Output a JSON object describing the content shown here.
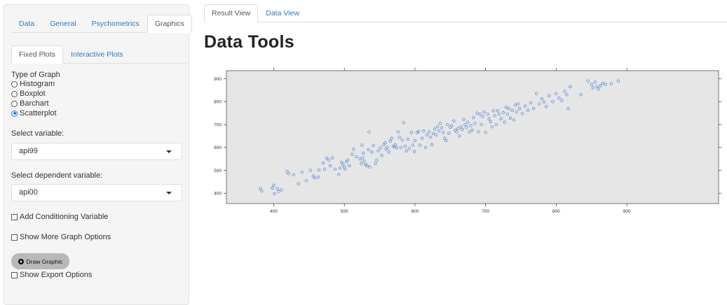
{
  "sidebar": {
    "tabs": [
      "Data",
      "General",
      "Psychometrics",
      "Graphics"
    ],
    "active_tab": "Graphics",
    "subtabs": [
      "Fixed Plots",
      "Interactive Plots"
    ],
    "active_subtab": "Fixed Plots",
    "graph_type_label": "Type of Graph",
    "graph_types": [
      {
        "label": "Histogram",
        "checked": false
      },
      {
        "label": "Boxplot",
        "checked": false
      },
      {
        "label": "Barchart",
        "checked": false
      },
      {
        "label": "Scatterplot",
        "checked": true
      }
    ],
    "select_variable_label": "Select variable:",
    "select_variable_value": "api99",
    "select_dependent_label": "Select dependent variable:",
    "select_dependent_value": "api00",
    "add_conditioning_label": "Add Conditioning Variable",
    "more_options_label": "Show More Graph Options",
    "draw_button_label": "Draw Graphic",
    "export_options_label": "Show Export Options"
  },
  "main": {
    "tabs": [
      "Result View",
      "Data View"
    ],
    "active_tab": "Result View",
    "title": "Data Tools"
  },
  "colors": {
    "accent_link": "#337ab7",
    "point_color": "#4f7fd6",
    "plot_background": "#e6e6e6"
  },
  "chart_data": {
    "type": "scatter",
    "title": "",
    "xlabel": "",
    "ylabel": "",
    "xlim": [
      333,
      1030
    ],
    "ylim": [
      355,
      935
    ],
    "xticks": [
      400,
      500,
      600,
      700,
      800,
      900
    ],
    "yticks": [
      400,
      500,
      600,
      700,
      800,
      900
    ],
    "grid": false,
    "points": [
      [
        381,
        420
      ],
      [
        383,
        410
      ],
      [
        398,
        422
      ],
      [
        400,
        435
      ],
      [
        401,
        398
      ],
      [
        405,
        420
      ],
      [
        407,
        408
      ],
      [
        411,
        415
      ],
      [
        419,
        495
      ],
      [
        421,
        486
      ],
      [
        428,
        481
      ],
      [
        435,
        442
      ],
      [
        440,
        492
      ],
      [
        446,
        455
      ],
      [
        452,
        500
      ],
      [
        456,
        475
      ],
      [
        458,
        468
      ],
      [
        463,
        470
      ],
      [
        464,
        502
      ],
      [
        470,
        532
      ],
      [
        472,
        505
      ],
      [
        475,
        553
      ],
      [
        478,
        545
      ],
      [
        480,
        520
      ],
      [
        483,
        555
      ],
      [
        487,
        505
      ],
      [
        492,
        482
      ],
      [
        494,
        510
      ],
      [
        496,
        535
      ],
      [
        498,
        525
      ],
      [
        500,
        515
      ],
      [
        501,
        505
      ],
      [
        503,
        538
      ],
      [
        505,
        545
      ],
      [
        507,
        520
      ],
      [
        511,
        570
      ],
      [
        513,
        592
      ],
      [
        517,
        560
      ],
      [
        522,
        550
      ],
      [
        524,
        530
      ],
      [
        525,
        610
      ],
      [
        526,
        555
      ],
      [
        527,
        575
      ],
      [
        528,
        540
      ],
      [
        530,
        525
      ],
      [
        532,
        520
      ],
      [
        534,
        590
      ],
      [
        535,
        668
      ],
      [
        536,
        515
      ],
      [
        539,
        580
      ],
      [
        541,
        608
      ],
      [
        544,
        530
      ],
      [
        546,
        545
      ],
      [
        548,
        585
      ],
      [
        551,
        598
      ],
      [
        553,
        565
      ],
      [
        556,
        612
      ],
      [
        558,
        620
      ],
      [
        559,
        592
      ],
      [
        561,
        600
      ],
      [
        563,
        580
      ],
      [
        565,
        628
      ],
      [
        567,
        640
      ],
      [
        569,
        605
      ],
      [
        571,
        602
      ],
      [
        572,
        612
      ],
      [
        574,
        598
      ],
      [
        576,
        668
      ],
      [
        578,
        645
      ],
      [
        580,
        600
      ],
      [
        582,
        632
      ],
      [
        584,
        708
      ],
      [
        586,
        605
      ],
      [
        588,
        585
      ],
      [
        590,
        635
      ],
      [
        592,
        595
      ],
      [
        595,
        665
      ],
      [
        597,
        610
      ],
      [
        599,
        582
      ],
      [
        600,
        630
      ],
      [
        603,
        665
      ],
      [
        605,
        670
      ],
      [
        607,
        610
      ],
      [
        610,
        640
      ],
      [
        612,
        672
      ],
      [
        615,
        600
      ],
      [
        617,
        655
      ],
      [
        620,
        668
      ],
      [
        622,
        645
      ],
      [
        624,
        612
      ],
      [
        626,
        660
      ],
      [
        628,
        680
      ],
      [
        630,
        655
      ],
      [
        632,
        690
      ],
      [
        634,
        672
      ],
      [
        636,
        705
      ],
      [
        638,
        685
      ],
      [
        640,
        665
      ],
      [
        642,
        640
      ],
      [
        644,
        630
      ],
      [
        646,
        700
      ],
      [
        648,
        662
      ],
      [
        650,
        688
      ],
      [
        652,
        695
      ],
      [
        655,
        715
      ],
      [
        657,
        675
      ],
      [
        659,
        668
      ],
      [
        661,
        682
      ],
      [
        663,
        650
      ],
      [
        665,
        690
      ],
      [
        667,
        678
      ],
      [
        669,
        722
      ],
      [
        671,
        700
      ],
      [
        673,
        688
      ],
      [
        675,
        710
      ],
      [
        677,
        668
      ],
      [
        679,
        695
      ],
      [
        681,
        675
      ],
      [
        683,
        730
      ],
      [
        685,
        705
      ],
      [
        688,
        750
      ],
      [
        690,
        668
      ],
      [
        692,
        745
      ],
      [
        694,
        700
      ],
      [
        696,
        735
      ],
      [
        698,
        755
      ],
      [
        700,
        665
      ],
      [
        703,
        745
      ],
      [
        705,
        725
      ],
      [
        707,
        712
      ],
      [
        709,
        690
      ],
      [
        711,
        760
      ],
      [
        713,
        738
      ],
      [
        715,
        700
      ],
      [
        717,
        760
      ],
      [
        719,
        745
      ],
      [
        722,
        725
      ],
      [
        725,
        752
      ],
      [
        727,
        710
      ],
      [
        729,
        775
      ],
      [
        731,
        745
      ],
      [
        733,
        770
      ],
      [
        735,
        728
      ],
      [
        738,
        762
      ],
      [
        740,
        720
      ],
      [
        742,
        785
      ],
      [
        744,
        755
      ],
      [
        746,
        790
      ],
      [
        748,
        770
      ],
      [
        752,
        748
      ],
      [
        756,
        780
      ],
      [
        760,
        762
      ],
      [
        764,
        795
      ],
      [
        768,
        770
      ],
      [
        772,
        835
      ],
      [
        776,
        790
      ],
      [
        780,
        812
      ],
      [
        783,
        798
      ],
      [
        786,
        778
      ],
      [
        790,
        825
      ],
      [
        795,
        800
      ],
      [
        800,
        835
      ],
      [
        804,
        815
      ],
      [
        808,
        805
      ],
      [
        812,
        845
      ],
      [
        815,
        830
      ],
      [
        817,
        770
      ],
      [
        820,
        865
      ],
      [
        835,
        830
      ],
      [
        845,
        890
      ],
      [
        850,
        875
      ],
      [
        852,
        860
      ],
      [
        855,
        885
      ],
      [
        858,
        865
      ],
      [
        860,
        855
      ],
      [
        863,
        870
      ],
      [
        866,
        880
      ],
      [
        870,
        875
      ],
      [
        878,
        878
      ],
      [
        888,
        890
      ]
    ]
  }
}
